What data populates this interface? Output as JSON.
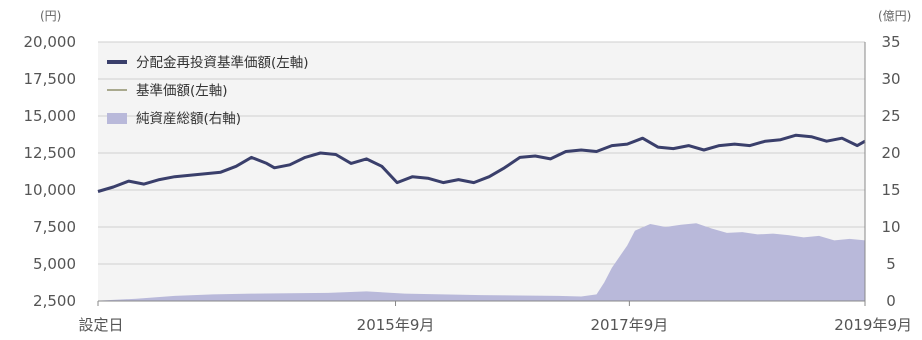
{
  "chart_data": {
    "type": "line",
    "left_unit": "(円)",
    "right_unit": "(億円)",
    "x_labels": [
      "設定日",
      "2015年9月",
      "2017年9月",
      "2019年9月"
    ],
    "x_label_positions": [
      0,
      0.3879,
      0.6928,
      1.0
    ],
    "y_left": {
      "range": [
        2500,
        20000
      ],
      "ticks": [
        "20,000",
        "17,500",
        "15,000",
        "12,500",
        "10,000",
        "7,500",
        "5,000",
        "2,500"
      ],
      "tick_values": [
        20000,
        17500,
        15000,
        12500,
        10000,
        7500,
        5000,
        2500
      ]
    },
    "y_right": {
      "range": [
        0,
        35
      ],
      "ticks": [
        "35",
        "30",
        "25",
        "20",
        "15",
        "10",
        "5",
        "0"
      ],
      "tick_values": [
        35,
        30,
        25,
        20,
        15,
        10,
        5,
        0
      ]
    },
    "grid": true,
    "legend_position": "top-left",
    "colors": {
      "reinvested": "#3a3f6b",
      "nav": "#a9a98e",
      "net_assets": "#b9b9da",
      "grid": "#cfcfcf",
      "plot_bg": "#f4f4f4"
    },
    "series": [
      {
        "name": "分配金再投資基準価額(左軸)",
        "axis": "left",
        "x": [
          0,
          0.02,
          0.04,
          0.06,
          0.08,
          0.1,
          0.12,
          0.14,
          0.16,
          0.18,
          0.2,
          0.22,
          0.23,
          0.25,
          0.27,
          0.29,
          0.31,
          0.33,
          0.35,
          0.37,
          0.39,
          0.41,
          0.43,
          0.45,
          0.47,
          0.49,
          0.51,
          0.53,
          0.55,
          0.57,
          0.59,
          0.61,
          0.63,
          0.65,
          0.67,
          0.69,
          0.71,
          0.73,
          0.75,
          0.77,
          0.79,
          0.81,
          0.83,
          0.85,
          0.87,
          0.89,
          0.91,
          0.93,
          0.95,
          0.97,
          0.99,
          1.0
        ],
        "values": [
          9900,
          10200,
          10600,
          10400,
          10700,
          10900,
          11000,
          11100,
          11200,
          11600,
          12200,
          11800,
          11500,
          11700,
          12200,
          12500,
          12400,
          11800,
          12100,
          11600,
          10500,
          10900,
          10800,
          10500,
          10700,
          10500,
          10900,
          11500,
          12200,
          12300,
          12100,
          12600,
          12700,
          12600,
          13000,
          13100,
          13500,
          12900,
          12800,
          13000,
          12700,
          13000,
          13100,
          13000,
          13300,
          13400,
          13700,
          13600,
          13300,
          13500,
          13000,
          13300
        ]
      },
      {
        "name": "基準価額(左軸)",
        "axis": "left",
        "x": [
          0,
          0.02,
          0.04,
          0.06,
          0.08,
          0.1,
          0.12,
          0.14,
          0.16,
          0.18,
          0.2,
          0.22,
          0.23,
          0.25,
          0.27,
          0.29,
          0.31,
          0.33,
          0.35,
          0.37,
          0.39,
          0.41,
          0.43,
          0.45,
          0.47,
          0.49,
          0.51,
          0.53,
          0.55,
          0.57,
          0.59,
          0.61,
          0.63,
          0.65,
          0.67,
          0.69,
          0.71,
          0.73,
          0.75,
          0.77,
          0.79,
          0.81,
          0.83,
          0.85,
          0.87,
          0.89,
          0.91,
          0.93,
          0.95,
          0.97,
          0.99,
          1.0
        ],
        "values": [
          9900,
          10200,
          10600,
          10400,
          10700,
          10900,
          11000,
          11100,
          11200,
          11600,
          12200,
          11800,
          11500,
          11700,
          12200,
          12500,
          12400,
          11800,
          12100,
          11600,
          10500,
          10900,
          10800,
          10500,
          10700,
          10500,
          10900,
          11500,
          12200,
          12300,
          12100,
          12600,
          12700,
          12600,
          13000,
          13100,
          13500,
          12900,
          12800,
          13000,
          12700,
          13000,
          13100,
          13000,
          13300,
          13400,
          13700,
          13600,
          13300,
          13500,
          13000,
          13300
        ]
      },
      {
        "name": "純資産総額(右軸)",
        "axis": "right",
        "type": "area",
        "x": [
          0,
          0.05,
          0.1,
          0.15,
          0.2,
          0.25,
          0.3,
          0.35,
          0.4,
          0.45,
          0.5,
          0.55,
          0.6,
          0.63,
          0.65,
          0.66,
          0.67,
          0.68,
          0.69,
          0.7,
          0.72,
          0.74,
          0.76,
          0.78,
          0.8,
          0.82,
          0.84,
          0.86,
          0.88,
          0.9,
          0.92,
          0.94,
          0.96,
          0.98,
          1.0
        ],
        "values": [
          0.05,
          0.3,
          0.7,
          0.9,
          1.0,
          1.05,
          1.1,
          1.3,
          1.0,
          0.9,
          0.8,
          0.75,
          0.7,
          0.6,
          0.9,
          2.5,
          4.5,
          6.0,
          7.5,
          9.5,
          10.4,
          10.0,
          10.3,
          10.5,
          9.8,
          9.2,
          9.3,
          9.0,
          9.1,
          8.9,
          8.6,
          8.8,
          8.2,
          8.4,
          8.2
        ]
      }
    ]
  }
}
